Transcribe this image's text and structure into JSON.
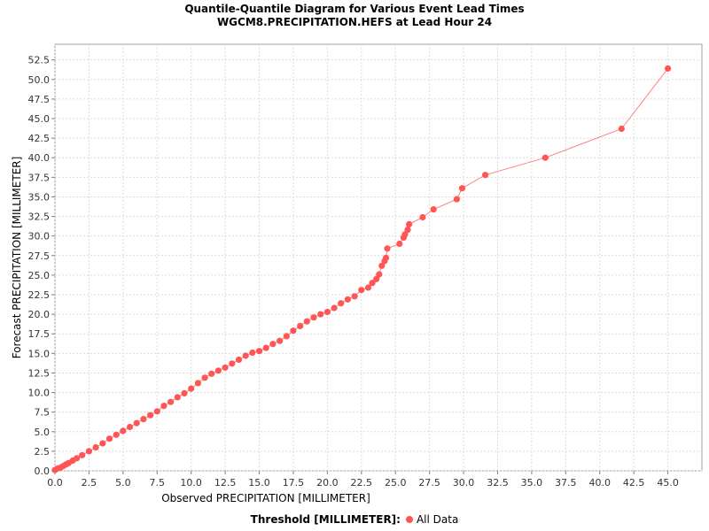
{
  "chart_data": {
    "type": "scatter",
    "title": "Quantile-Quantile Diagram for Various Event Lead Times",
    "subtitle": "WGCM8.PRECIPITATION.HEFS at Lead Hour 24",
    "xlabel": "Observed PRECIPITATION [MILLIMETER]",
    "ylabel": "Forecast PRECIPITATION [MILLIMETER]",
    "xlim": [
      0,
      47.5
    ],
    "ylim": [
      0,
      54.5
    ],
    "x_ticks": [
      "0.0",
      "2.5",
      "5.0",
      "7.5",
      "10.0",
      "12.5",
      "15.0",
      "17.5",
      "20.0",
      "22.5",
      "25.0",
      "27.5",
      "30.0",
      "32.5",
      "35.0",
      "37.5",
      "40.0",
      "42.5",
      "45.0"
    ],
    "y_ticks": [
      "0.0",
      "2.5",
      "5.0",
      "7.5",
      "10.0",
      "12.5",
      "15.0",
      "17.5",
      "20.0",
      "22.5",
      "25.0",
      "27.5",
      "30.0",
      "32.5",
      "35.0",
      "37.5",
      "40.0",
      "42.5",
      "45.0",
      "47.5",
      "50.0",
      "52.5"
    ],
    "grid": true,
    "legend_position": "bottom",
    "legend_title": "Threshold [MILLIMETER]:",
    "series_color": "#ff5555",
    "series": [
      {
        "name": "All Data",
        "x": [
          0.0,
          0.2,
          0.4,
          0.6,
          0.8,
          1.0,
          1.3,
          1.6,
          2.0,
          2.5,
          3.0,
          3.5,
          4.0,
          4.5,
          5.0,
          5.5,
          6.0,
          6.5,
          7.0,
          7.5,
          8.0,
          8.5,
          9.0,
          9.5,
          10.0,
          10.5,
          11.0,
          11.5,
          12.0,
          12.5,
          13.0,
          13.5,
          14.0,
          14.5,
          15.0,
          15.5,
          16.0,
          16.5,
          17.0,
          17.5,
          18.0,
          18.5,
          19.0,
          19.5,
          20.0,
          20.5,
          21.0,
          21.5,
          22.0,
          22.5,
          23.0,
          23.3,
          23.6,
          23.8,
          24.0,
          24.2,
          24.3,
          24.4,
          25.3,
          25.6,
          25.7,
          25.9,
          26.0,
          27.0,
          27.8,
          29.5,
          29.9,
          31.6,
          36.0,
          41.6,
          45.0
        ],
        "y": [
          0.1,
          0.3,
          0.4,
          0.6,
          0.8,
          1.0,
          1.3,
          1.6,
          2.0,
          2.5,
          3.0,
          3.5,
          4.1,
          4.6,
          5.1,
          5.6,
          6.1,
          6.6,
          7.1,
          7.6,
          8.3,
          8.8,
          9.4,
          9.9,
          10.5,
          11.2,
          11.9,
          12.4,
          12.8,
          13.2,
          13.7,
          14.2,
          14.7,
          15.1,
          15.3,
          15.7,
          16.2,
          16.6,
          17.2,
          17.9,
          18.5,
          19.1,
          19.6,
          20.0,
          20.3,
          20.8,
          21.4,
          21.9,
          22.3,
          23.1,
          23.4,
          24.0,
          24.5,
          25.1,
          26.2,
          26.8,
          27.2,
          28.4,
          29.0,
          29.8,
          30.2,
          30.8,
          31.5,
          32.4,
          33.4,
          34.7,
          36.1,
          37.8,
          40.0,
          43.7,
          51.4
        ]
      }
    ]
  }
}
